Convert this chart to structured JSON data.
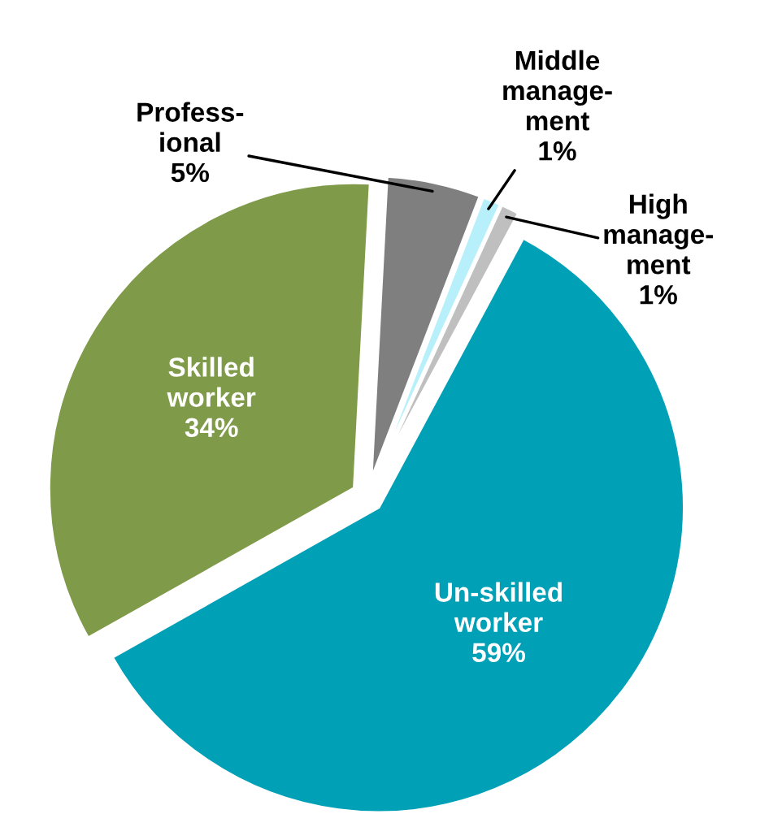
{
  "chart_data": {
    "type": "pie",
    "categories": [
      "Profess-\nional",
      "Middle\nmanage-\nment",
      "High\nmanage-\nment",
      "Un-skilled\nworker",
      "Skilled\nworker"
    ],
    "values": [
      5,
      1,
      1,
      59,
      34
    ],
    "value_labels": [
      "5%",
      "1%",
      "1%",
      "59%",
      "34%"
    ],
    "colors": [
      "#7f7f7f",
      "#b7f0fa",
      "#bfbfbf",
      "#00a0b6",
      "#7f9a48"
    ],
    "legend": false
  }
}
